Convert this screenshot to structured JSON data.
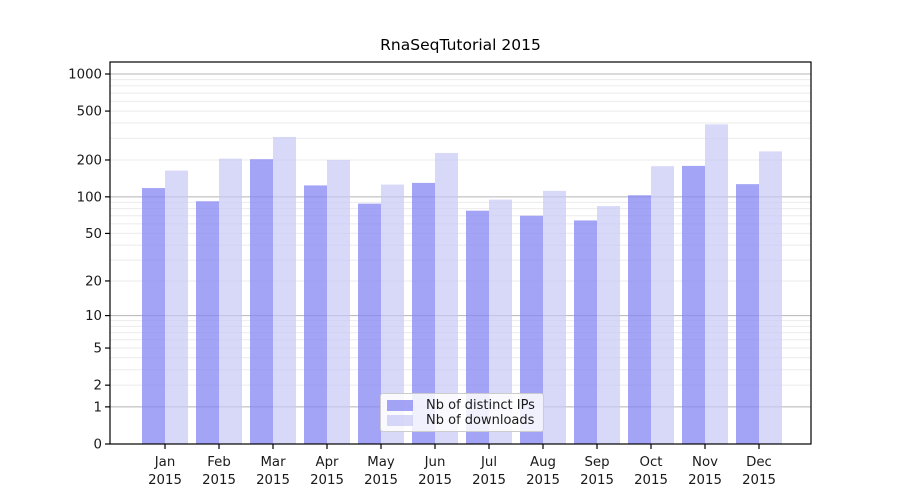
{
  "title": "RnaSeqTutorial 2015",
  "chart_data": {
    "type": "bar",
    "title": "RnaSeqTutorial 2015",
    "categories": [
      "Jan",
      "Feb",
      "Mar",
      "Apr",
      "May",
      "Jun",
      "Jul",
      "Aug",
      "Sep",
      "Oct",
      "Nov",
      "Dec"
    ],
    "year_label": "2015",
    "series": [
      {
        "name": "Nb of distinct IPs",
        "color": "rgba(134,134,243,0.75)",
        "values": [
          118,
          92,
          203,
          124,
          88,
          130,
          77,
          70,
          64,
          103,
          179,
          127
        ]
      },
      {
        "name": "Nb of downloads",
        "color": "rgba(199,199,246,0.70)",
        "values": [
          164,
          205,
          308,
          200,
          126,
          228,
          95,
          112,
          84,
          178,
          390,
          235
        ]
      }
    ],
    "xlabel": "",
    "ylabel": "",
    "scale": "log1p",
    "ylim": [
      0,
      1001
    ],
    "yticks": [
      0,
      1,
      2,
      5,
      10,
      20,
      50,
      100,
      200,
      500,
      1000
    ],
    "major_gridlines": [
      1,
      10,
      100,
      1000
    ],
    "minor_gridlines": [
      3,
      4,
      6,
      7,
      8,
      9,
      30,
      40,
      60,
      70,
      80,
      90,
      300,
      400,
      600,
      700,
      800,
      900
    ],
    "grid": true,
    "legend_position": "lower center"
  },
  "colors": {
    "axis": "#000000",
    "major_grid": "#b5b5b5",
    "minor_grid": "#ebebeb",
    "tick_text": "#1a1a1a",
    "background": "#ffffff"
  }
}
